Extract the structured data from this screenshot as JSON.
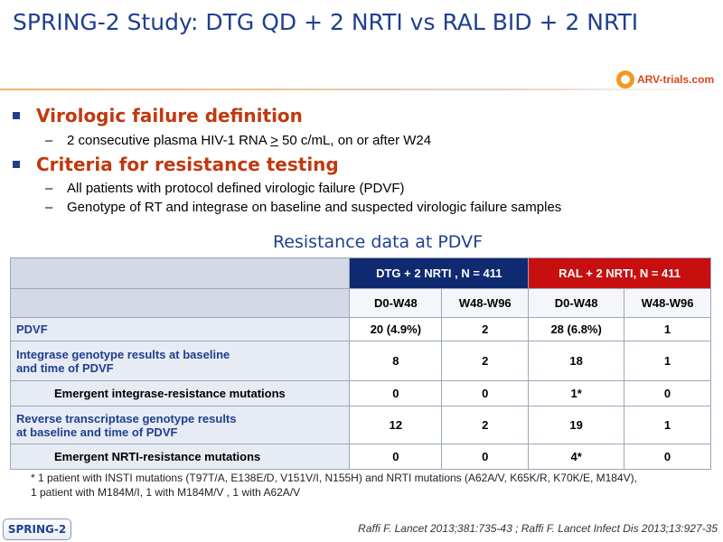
{
  "header": {
    "title": "SPRING-2 Study: DTG QD + 2 NRTI vs RAL BID + 2 NRTI",
    "logo_text": "ARV-trials.com"
  },
  "bullets": [
    {
      "heading": "Virologic failure definition",
      "subs": [
        {
          "pre": "2 consecutive plasma HIV-1 RNA ",
          "u": ">",
          "post": " 50 c/mL, on or after W24"
        }
      ]
    },
    {
      "heading": "Criteria for resistance testing",
      "subs": [
        {
          "text": "All patients with protocol defined virologic failure (PDVF)"
        },
        {
          "text": "Genotype of RT and integrase on baseline and suspected virologic failure samples"
        }
      ]
    }
  ],
  "table": {
    "title": "Resistance data at PDVF",
    "groups": [
      "DTG + 2 NRTI , N = 411",
      "RAL + 2 NRTI, N = 411"
    ],
    "subheaders": [
      "D0-W48",
      "W48-W96",
      "D0-W48",
      "W48-W96"
    ],
    "rows": [
      {
        "label": "PDVF",
        "values": [
          "20 (4.9%)",
          "2",
          "28 (6.8%)",
          "1"
        ]
      },
      {
        "label_l1": "Integrase genotype results at baseline",
        "label_l2": "and time of PDVF",
        "values": [
          "8",
          "2",
          "18",
          "1"
        ]
      },
      {
        "label": "Emergent integrase-resistance mutations",
        "values": [
          "0",
          "0",
          "1*",
          "0"
        ]
      },
      {
        "label_l1": "Reverse transcriptase genotype results",
        "label_l2": "at baseline and time of PDVF",
        "values": [
          "12",
          "2",
          "19",
          "1"
        ]
      },
      {
        "label": "Emergent NRTI-resistance mutations",
        "values": [
          "0",
          "0",
          "4*",
          "0"
        ]
      }
    ]
  },
  "footnote": {
    "line1": "* 1 patient with INSTI mutations (T97T/A, E138E/D, V151V/I, N155H) and NRTI mutations (A62A/V, K65K/R, K70K/E, M184V),",
    "line2": "1 patient with M184M/I, 1 with M184M/V , 1 with A62A/V"
  },
  "reference": "Raffi F. Lancet 2013;381:735-43 ; Raffi F. Lancet Infect Dis 2013;13:927-35",
  "badge": "SPRING-2",
  "colors": {
    "title": "#1f3f8f",
    "accent_red": "#c0390f",
    "dtg_header": "#0f2a70",
    "ral_header": "#c80f10"
  }
}
